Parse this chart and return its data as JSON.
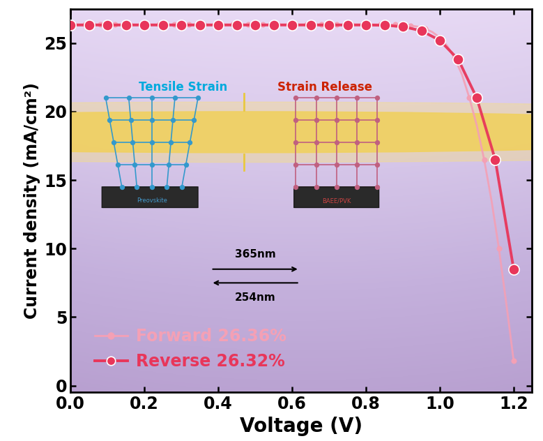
{
  "title": "",
  "xlabel": "Voltage (V)",
  "ylabel": "Current density (mA/cm²)",
  "xlim": [
    0.0,
    1.25
  ],
  "ylim": [
    -0.5,
    27.5
  ],
  "xticks": [
    0.0,
    0.2,
    0.4,
    0.6,
    0.8,
    1.0,
    1.2
  ],
  "yticks": [
    0,
    5,
    10,
    15,
    20,
    25
  ],
  "forward_color": "#f4a0b5",
  "reverse_color": "#e8365a",
  "forward_label": "Forward 26.36%",
  "reverse_label": "Reverse 26.32%",
  "forward_data_v": [
    0.0,
    0.02,
    0.04,
    0.06,
    0.08,
    0.1,
    0.12,
    0.14,
    0.16,
    0.18,
    0.2,
    0.22,
    0.24,
    0.26,
    0.28,
    0.3,
    0.32,
    0.34,
    0.36,
    0.38,
    0.4,
    0.42,
    0.44,
    0.46,
    0.48,
    0.5,
    0.52,
    0.54,
    0.56,
    0.58,
    0.6,
    0.62,
    0.64,
    0.66,
    0.68,
    0.7,
    0.72,
    0.74,
    0.76,
    0.78,
    0.8,
    0.82,
    0.84,
    0.86,
    0.88,
    0.9,
    0.92,
    0.94,
    0.96,
    0.98,
    1.0,
    1.02,
    1.04,
    1.06,
    1.08,
    1.1,
    1.12,
    1.14,
    1.16,
    1.18,
    1.2
  ],
  "forward_data_j": [
    26.36,
    26.36,
    26.36,
    26.36,
    26.36,
    26.36,
    26.36,
    26.36,
    26.36,
    26.36,
    26.36,
    26.36,
    26.36,
    26.36,
    26.36,
    26.36,
    26.36,
    26.36,
    26.36,
    26.36,
    26.36,
    26.36,
    26.36,
    26.36,
    26.36,
    26.36,
    26.36,
    26.36,
    26.36,
    26.36,
    26.36,
    26.36,
    26.36,
    26.36,
    26.36,
    26.36,
    26.36,
    26.36,
    26.36,
    26.36,
    26.36,
    26.36,
    26.36,
    26.35,
    26.34,
    26.32,
    26.28,
    26.2,
    26.05,
    25.8,
    25.4,
    24.8,
    23.9,
    22.7,
    21.0,
    19.0,
    16.5,
    13.5,
    10.0,
    6.0,
    1.8
  ],
  "reverse_data_v": [
    0.0,
    0.05,
    0.1,
    0.15,
    0.2,
    0.25,
    0.3,
    0.35,
    0.4,
    0.45,
    0.5,
    0.55,
    0.6,
    0.65,
    0.7,
    0.75,
    0.8,
    0.85,
    0.9,
    0.95,
    1.0,
    1.05,
    1.1,
    1.15,
    1.2
  ],
  "reverse_data_j": [
    26.32,
    26.32,
    26.32,
    26.32,
    26.32,
    26.32,
    26.32,
    26.32,
    26.32,
    26.32,
    26.32,
    26.32,
    26.32,
    26.32,
    26.32,
    26.32,
    26.32,
    26.3,
    26.2,
    25.9,
    25.2,
    23.8,
    21.0,
    16.5,
    8.5
  ],
  "xlabel_fontsize": 20,
  "ylabel_fontsize": 17,
  "tick_fontsize": 17,
  "legend_fontsize": 17,
  "bg_gradient_top": "#c8b0e0",
  "bg_gradient_bottom": "#e8d8f0",
  "bg_center": "#d8c8ec"
}
